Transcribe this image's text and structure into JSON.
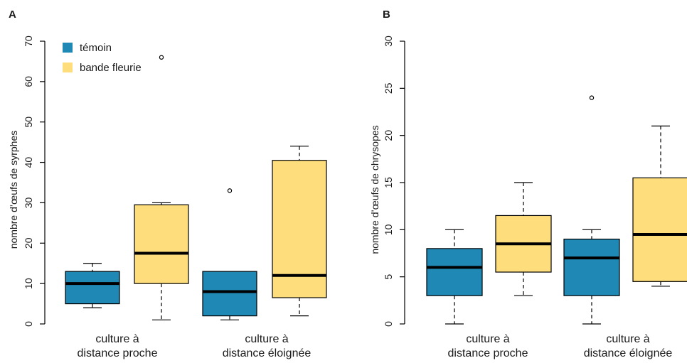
{
  "colors": {
    "temoin": "#2088b5",
    "bande": "#fedd7c",
    "line": "#000000"
  },
  "chart_data": [
    {
      "type": "boxplot",
      "panel": "A",
      "ylabel": "nombre d’œufs de syrphes",
      "ylim": [
        0,
        70
      ],
      "yticks": [
        0,
        10,
        20,
        30,
        40,
        50,
        60,
        70
      ],
      "categories": [
        [
          "culture à",
          "distance proche"
        ],
        [
          "culture à",
          "distance éloignée"
        ]
      ],
      "legend": {
        "placement": "top-left"
      },
      "series": [
        {
          "name": "témoin",
          "color_key": "temoin",
          "boxes": [
            {
              "min": 4,
              "q1": 5,
              "median": 10,
              "q3": 13,
              "max": 15,
              "outliers": []
            },
            {
              "min": 1,
              "q1": 2,
              "median": 8,
              "q3": 13,
              "max": 13,
              "outliers": [
                33
              ]
            }
          ]
        },
        {
          "name": "bande fleurie",
          "color_key": "bande",
          "boxes": [
            {
              "min": 1,
              "q1": 10,
              "median": 17.5,
              "q3": 29.5,
              "max": 30,
              "outliers": [
                66
              ]
            },
            {
              "min": 2,
              "q1": 6.5,
              "median": 12,
              "q3": 40.5,
              "max": 44,
              "outliers": []
            }
          ]
        }
      ]
    },
    {
      "type": "boxplot",
      "panel": "B",
      "ylabel": "nombre d’œufs de chrysopes",
      "ylim": [
        0,
        30
      ],
      "yticks": [
        0,
        5,
        10,
        15,
        20,
        25,
        30
      ],
      "categories": [
        [
          "culture à",
          "distance proche"
        ],
        [
          "culture à",
          "distance éloignée"
        ]
      ],
      "series": [
        {
          "name": "témoin",
          "color_key": "temoin",
          "boxes": [
            {
              "min": 0,
              "q1": 3,
              "median": 6,
              "q3": 8,
              "max": 10,
              "outliers": []
            },
            {
              "min": 0,
              "q1": 3,
              "median": 7,
              "q3": 9,
              "max": 10,
              "outliers": [
                24
              ]
            }
          ]
        },
        {
          "name": "bande fleurie",
          "color_key": "bande",
          "boxes": [
            {
              "min": 3,
              "q1": 5.5,
              "median": 8.5,
              "q3": 11.5,
              "max": 15,
              "outliers": []
            },
            {
              "min": 4,
              "q1": 4.5,
              "median": 9.5,
              "q3": 15.5,
              "max": 21,
              "outliers": []
            }
          ]
        }
      ]
    }
  ]
}
